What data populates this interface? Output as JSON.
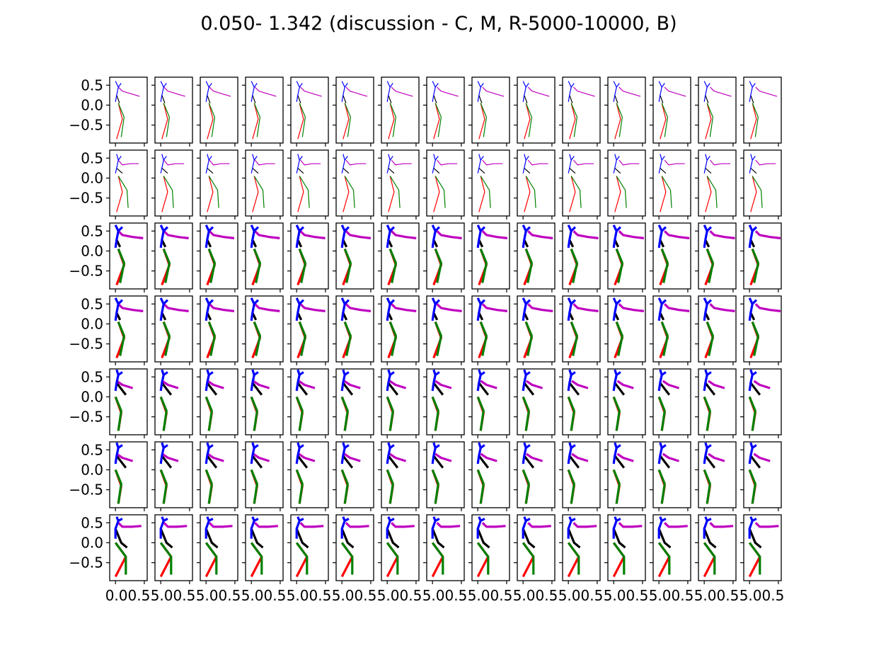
{
  "title": "0.050- 1.342 (discussion - C, M, R-5000-10000, B)",
  "chart_data": {
    "type": "line",
    "title": "0.050- 1.342 (discussion - C, M, R-5000-10000, B)",
    "grid": {
      "rows": 7,
      "cols": 15
    },
    "xlim": [
      -0.1,
      0.55
    ],
    "ylim": [
      -0.95,
      0.7
    ],
    "y_ticks": [
      0.5,
      0.0,
      -0.5
    ],
    "y_tick_labels": [
      "0.5",
      "0.0",
      "−0.5"
    ],
    "x_ticks": [
      0.0,
      0.5
    ],
    "x_tick_labels": [
      "0.00.5",
      "5.00.5",
      "5.00.5",
      "5.00.5",
      "5.00.5",
      "5.00.5",
      "5.00.5",
      "5.00.5",
      "5.00.5",
      "5.00.5",
      "5.00.5",
      "5.00.5",
      "5.00.5",
      "5.00.5",
      "5.00.5"
    ],
    "series_colors": {
      "torso": "#0000ff",
      "arm_a": "#000000",
      "arm_b": "#bf00bf",
      "leg_a": "#ff0000",
      "leg_b": "#008000"
    },
    "row_widths": [
      1.2,
      1.2,
      3.2,
      3.2,
      3.2,
      3.2,
      3.2
    ],
    "row_poses": [
      {
        "torso": [
          [
            0.05,
            0.45
          ],
          [
            0.02,
            0.25
          ],
          [
            0.0,
            0.08
          ]
        ],
        "head": [
          [
            0.0,
            0.6
          ],
          [
            0.05,
            0.45
          ],
          [
            0.1,
            0.55
          ]
        ],
        "arm_a": [
          [
            0.02,
            0.25
          ],
          [
            0.07,
            0.05
          ]
        ],
        "arm_b": [
          [
            0.05,
            0.45
          ],
          [
            0.12,
            0.35
          ],
          [
            0.28,
            0.28
          ],
          [
            0.42,
            0.22
          ]
        ],
        "leg_a": [
          [
            0.05,
            0.05
          ],
          [
            0.12,
            -0.35
          ],
          [
            0.02,
            -0.85
          ]
        ],
        "leg_b": [
          [
            0.05,
            0.05
          ],
          [
            0.15,
            -0.3
          ],
          [
            0.1,
            -0.8
          ]
        ]
      },
      {
        "torso": [
          [
            0.05,
            0.45
          ],
          [
            0.02,
            0.25
          ],
          [
            0.0,
            0.12
          ]
        ],
        "head": [
          [
            0.02,
            0.6
          ],
          [
            0.05,
            0.45
          ],
          [
            0.1,
            0.55
          ]
        ],
        "arm_a": [
          [
            0.02,
            0.25
          ],
          [
            0.12,
            0.12
          ]
        ],
        "arm_b": [
          [
            0.05,
            0.45
          ],
          [
            0.12,
            0.33
          ],
          [
            0.25,
            0.36
          ],
          [
            0.4,
            0.36
          ]
        ],
        "leg_a": [
          [
            0.05,
            0.05
          ],
          [
            0.12,
            -0.35
          ],
          [
            0.02,
            -0.85
          ]
        ],
        "leg_b": [
          [
            0.05,
            0.05
          ],
          [
            0.2,
            -0.3
          ],
          [
            0.22,
            -0.75
          ]
        ]
      },
      {
        "torso": [
          [
            0.05,
            0.5
          ],
          [
            0.02,
            0.28
          ],
          [
            0.0,
            0.08
          ]
        ],
        "head": [
          [
            0.0,
            0.65
          ],
          [
            0.05,
            0.5
          ],
          [
            0.12,
            0.6
          ]
        ],
        "arm_a": [
          [
            0.02,
            0.28
          ],
          [
            0.08,
            0.1
          ]
        ],
        "arm_b": [
          [
            0.05,
            0.5
          ],
          [
            0.12,
            0.4
          ],
          [
            0.3,
            0.35
          ],
          [
            0.48,
            0.32
          ]
        ],
        "leg_a": [
          [
            0.05,
            0.05
          ],
          [
            0.15,
            -0.35
          ],
          [
            0.02,
            -0.85
          ]
        ],
        "leg_b": [
          [
            0.05,
            0.05
          ],
          [
            0.15,
            -0.3
          ],
          [
            0.08,
            -0.8
          ]
        ]
      },
      {
        "torso": [
          [
            0.05,
            0.5
          ],
          [
            0.02,
            0.28
          ],
          [
            0.0,
            0.08
          ]
        ],
        "head": [
          [
            0.0,
            0.65
          ],
          [
            0.05,
            0.5
          ],
          [
            0.12,
            0.6
          ]
        ],
        "arm_a": [
          [
            0.02,
            0.28
          ],
          [
            0.08,
            0.1
          ]
        ],
        "arm_b": [
          [
            0.05,
            0.5
          ],
          [
            0.12,
            0.4
          ],
          [
            0.3,
            0.35
          ],
          [
            0.48,
            0.32
          ]
        ],
        "leg_a": [
          [
            0.05,
            0.05
          ],
          [
            0.15,
            -0.35
          ],
          [
            0.02,
            -0.85
          ]
        ],
        "leg_b": [
          [
            0.05,
            0.05
          ],
          [
            0.15,
            -0.3
          ],
          [
            0.08,
            -0.8
          ]
        ]
      },
      {
        "torso": [
          [
            0.05,
            0.55
          ],
          [
            0.02,
            0.35
          ],
          [
            0.0,
            0.15
          ]
        ],
        "head": [
          [
            0.02,
            0.68
          ],
          [
            0.05,
            0.55
          ],
          [
            0.12,
            0.62
          ]
        ],
        "arm_a": [
          [
            0.02,
            0.35
          ],
          [
            0.1,
            0.2
          ],
          [
            0.18,
            0.05
          ]
        ],
        "arm_b": [
          [
            0.02,
            0.4
          ],
          [
            0.12,
            0.3
          ],
          [
            0.3,
            0.22
          ]
        ],
        "leg_a": [
          [
            0.0,
            0.0
          ],
          [
            0.1,
            -0.4
          ],
          [
            0.05,
            -0.85
          ]
        ],
        "leg_b": [
          [
            0.0,
            0.0
          ],
          [
            0.1,
            -0.35
          ],
          [
            0.05,
            -0.85
          ]
        ]
      },
      {
        "torso": [
          [
            0.05,
            0.55
          ],
          [
            0.02,
            0.35
          ],
          [
            0.0,
            0.15
          ]
        ],
        "head": [
          [
            0.02,
            0.68
          ],
          [
            0.05,
            0.55
          ],
          [
            0.12,
            0.62
          ]
        ],
        "arm_a": [
          [
            0.02,
            0.35
          ],
          [
            0.1,
            0.2
          ],
          [
            0.18,
            0.05
          ]
        ],
        "arm_b": [
          [
            0.02,
            0.4
          ],
          [
            0.12,
            0.3
          ],
          [
            0.3,
            0.22
          ]
        ],
        "leg_a": [
          [
            0.0,
            0.0
          ],
          [
            0.1,
            -0.4
          ],
          [
            0.05,
            -0.85
          ]
        ],
        "leg_b": [
          [
            0.0,
            0.0
          ],
          [
            0.1,
            -0.35
          ],
          [
            0.05,
            -0.85
          ]
        ]
      },
      {
        "torso": [
          [
            0.05,
            0.55
          ],
          [
            0.0,
            0.35
          ],
          [
            0.0,
            0.1
          ]
        ],
        "head": [
          [
            0.02,
            0.65
          ],
          [
            0.05,
            0.55
          ],
          [
            0.12,
            0.6
          ]
        ],
        "arm_a": [
          [
            0.0,
            0.35
          ],
          [
            0.1,
            0.0
          ],
          [
            0.2,
            -0.12
          ]
        ],
        "arm_b": [
          [
            0.05,
            0.5
          ],
          [
            0.12,
            0.4
          ],
          [
            0.28,
            0.4
          ],
          [
            0.45,
            0.42
          ]
        ],
        "leg_a": [
          [
            0.0,
            0.0
          ],
          [
            0.18,
            -0.35
          ],
          [
            0.0,
            -0.85
          ]
        ],
        "leg_b": [
          [
            0.0,
            0.0
          ],
          [
            0.18,
            -0.35
          ],
          [
            0.18,
            -0.8
          ]
        ]
      }
    ]
  }
}
